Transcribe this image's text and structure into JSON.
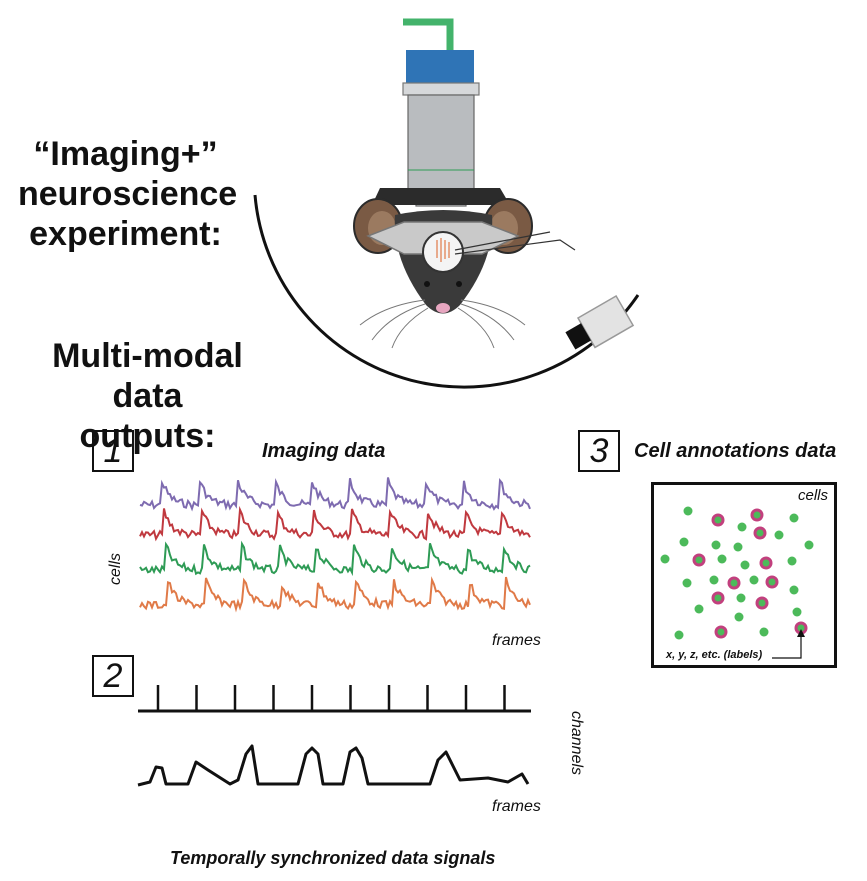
{
  "headings": {
    "experiment_line1": "“Imaging+”",
    "experiment_line2": "neuroscience",
    "experiment_line3": "experiment:",
    "outputs_line1": "Multi-modal",
    "outputs_line2": "data outputs:"
  },
  "panel1": {
    "number": "1",
    "title": "Imaging data",
    "ylabel": "cells",
    "xlabel": "frames",
    "trace_colors": [
      "#7e6bb0",
      "#c0393f",
      "#2e9b55",
      "#e07a48"
    ]
  },
  "panel2": {
    "number": "2",
    "ylabel": "channels",
    "xlabel": "frames"
  },
  "panel3": {
    "number": "3",
    "title": "Cell annotations data",
    "corner_label": "cells",
    "callout": "x, y, z, etc. (labels)",
    "colors": {
      "cell": "#4cba5a",
      "ring": "#c2407e"
    }
  },
  "footer": "Temporally synchronized data signals",
  "colors": {
    "wheel": "#111111",
    "objective": "#b9bcbf",
    "filter": "#2f74b6",
    "fiber": "#43b36b"
  }
}
